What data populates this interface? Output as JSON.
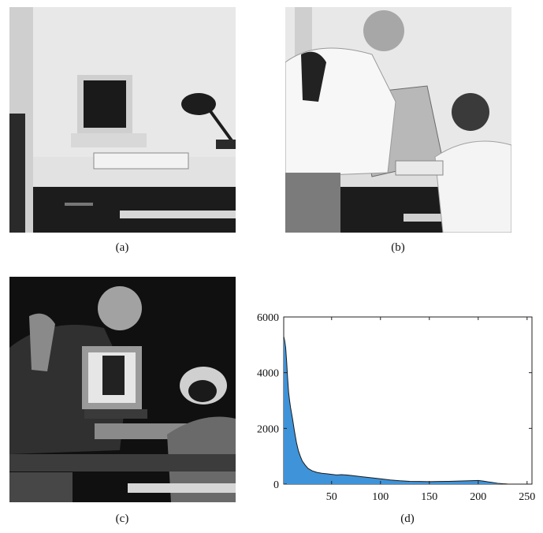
{
  "figure": {
    "captions": {
      "a": "(a)",
      "b": "(b)",
      "c": "(c)",
      "d": "(d)"
    },
    "images": {
      "a": "grayscale photo of a desk with a computer monitor, keyboard and lamp",
      "b": "grayscale photo of two people lifting a box over the desk",
      "c": "grayscale difference image of photos (a) and (b)"
    }
  },
  "chart_data": {
    "type": "area",
    "title": "",
    "xlabel": "",
    "ylabel": "",
    "xlim": [
      1,
      255
    ],
    "ylim": [
      0,
      6000
    ],
    "xticks": [
      50,
      100,
      150,
      200,
      250
    ],
    "yticks": [
      0,
      2000,
      4000,
      6000
    ],
    "grid": false,
    "color": "#3f93d8",
    "edge_color": "#1b1b1b",
    "series": [
      {
        "x": [
          1,
          2,
          3,
          4,
          5,
          6,
          7,
          8,
          10,
          12,
          14,
          16,
          18,
          20,
          23,
          26,
          30,
          35,
          40,
          45,
          50,
          55,
          60,
          65,
          70,
          75,
          80,
          90,
          100,
          110,
          120,
          130,
          140,
          150,
          160,
          170,
          180,
          190,
          200,
          205,
          210,
          215,
          220,
          225,
          230,
          235,
          240,
          245,
          250,
          255
        ],
        "values": [
          5300,
          5150,
          4900,
          4400,
          3800,
          3300,
          3000,
          2750,
          2350,
          1900,
          1500,
          1200,
          1000,
          830,
          680,
          560,
          480,
          420,
          390,
          370,
          350,
          330,
          340,
          330,
          310,
          290,
          270,
          230,
          190,
          150,
          120,
          100,
          95,
          90,
          95,
          100,
          110,
          120,
          130,
          110,
          80,
          55,
          30,
          15,
          5,
          0,
          0,
          0,
          0,
          0
        ]
      }
    ]
  }
}
